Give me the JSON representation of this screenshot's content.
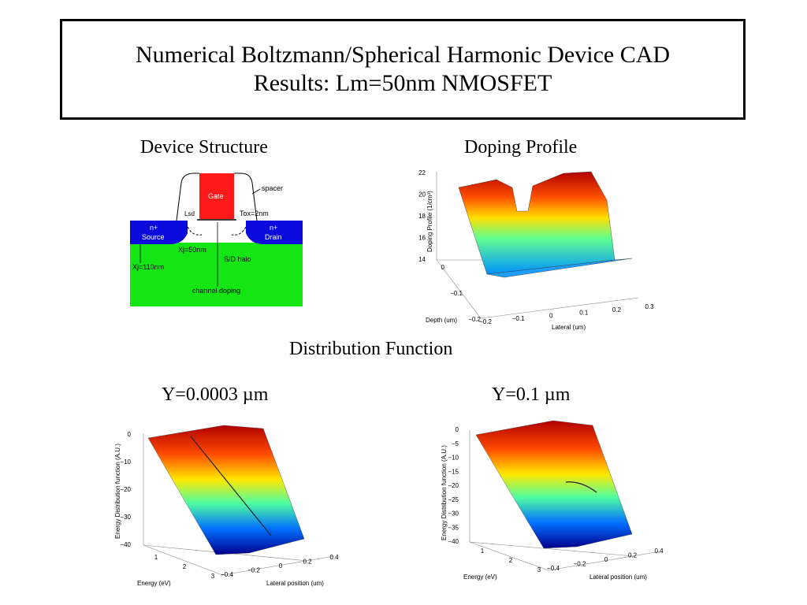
{
  "slide": {
    "title_line1": "Numerical Boltzmann/Spherical Harmonic Device CAD",
    "title_line2": "Results: Lm=50nm NMOSFET",
    "caption_structure": "Device Structure",
    "caption_doping": "Doping Profile",
    "caption_distribution": "Distribution Function",
    "caption_y1": "Y=0.0003 µm",
    "caption_y2": "Y=0.1 µm"
  },
  "device": {
    "gate": "Gate",
    "spacer": "spacer",
    "lsd": "Lsd",
    "tox": "Tox=2nm",
    "source_top": "n+",
    "source": "Source",
    "drain_top": "n+",
    "drain": "Drain",
    "xj50": "Xj=50nm",
    "halo": "S/D halo",
    "xj110": "Xj=110nm",
    "channel": "channel doping",
    "colors": {
      "gate": "#ff1a1a",
      "nplus": "#0a0adc",
      "substrate": "#14e614"
    }
  },
  "doping_plot": {
    "zlabel": "Doping Profile (1/cm³)",
    "zticks": [
      "22",
      "20",
      "18",
      "16",
      "14"
    ],
    "depth_label": "Depth (um)",
    "depth_ticks": [
      "0",
      "−0.1",
      "−0.2"
    ],
    "lateral_label": "Lateral (um)",
    "lateral_ticks": [
      "−0.2",
      "−0.1",
      "0",
      "0.1",
      "0.2",
      "0.3"
    ]
  },
  "dist_plot_1": {
    "zlabel": "Energy Distribution function (A.U.)",
    "zticks": [
      "0",
      "−10",
      "−20",
      "−30",
      "−40"
    ],
    "energy_label": "Energy (eV)",
    "energy_ticks": [
      "1",
      "2",
      "3"
    ],
    "lateral_label": "Lateral position (um)",
    "lateral_ticks": [
      "−0.4",
      "−0.2",
      "0",
      "0.2",
      "0.4"
    ]
  },
  "dist_plot_2": {
    "zlabel": "Energy Distribution function (A.U.)",
    "zticks": [
      "0",
      "−5",
      "−10",
      "−15",
      "−20",
      "−25",
      "−30",
      "−35",
      "−40"
    ],
    "energy_label": "Energy (eV)",
    "energy_ticks": [
      "1",
      "2",
      "3"
    ],
    "lateral_label": "Lateral position (um)",
    "lateral_ticks": [
      "−0.4",
      "−0.2",
      "0",
      "0.2",
      "0.4"
    ]
  }
}
